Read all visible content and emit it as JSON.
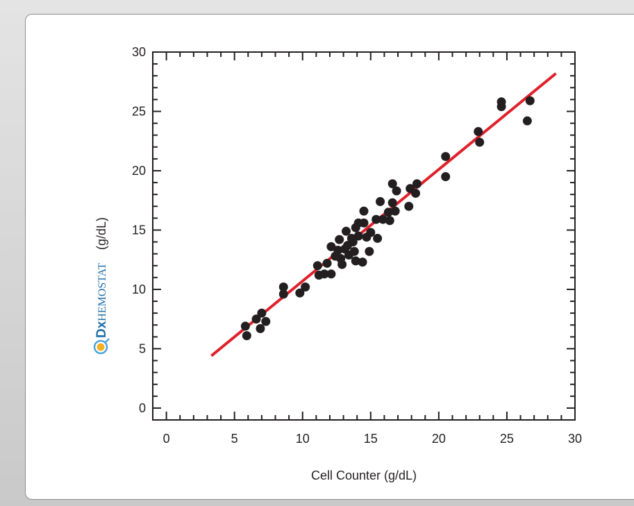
{
  "chart_data": {
    "type": "scatter",
    "xlabel": "Cell Counter (g/dL)",
    "ylabel": "(g/dL)",
    "ylabel_logo": {
      "prefix": "Dx",
      "name": "HemoStat",
      "name_display": "HEMOSTAT"
    },
    "xlim": [
      -1,
      30
    ],
    "ylim": [
      -1,
      30
    ],
    "x_ticks": [
      0,
      5,
      10,
      15,
      20,
      25,
      30
    ],
    "y_ticks": [
      0,
      5,
      10,
      15,
      20,
      25,
      30
    ],
    "grid": false,
    "legend": null,
    "colors": {
      "points": "#231f20",
      "fit_line": "#e0202a",
      "axes": "#231f20",
      "logo": "#1f6ea9"
    },
    "fit_line": {
      "x": [
        3.3,
        28.6
      ],
      "y": [
        4.4,
        28.2
      ]
    },
    "series": [
      {
        "points": [
          [
            5.8,
            6.9
          ],
          [
            5.9,
            6.1
          ],
          [
            6.6,
            7.5
          ],
          [
            6.9,
            6.7
          ],
          [
            7.0,
            8.0
          ],
          [
            7.3,
            7.3
          ],
          [
            8.6,
            10.2
          ],
          [
            8.6,
            9.6
          ],
          [
            9.8,
            9.7
          ],
          [
            10.2,
            10.2
          ],
          [
            11.1,
            12.0
          ],
          [
            11.2,
            11.2
          ],
          [
            11.6,
            11.3
          ],
          [
            11.8,
            12.2
          ],
          [
            12.1,
            11.3
          ],
          [
            12.1,
            13.6
          ],
          [
            12.4,
            12.8
          ],
          [
            12.6,
            13.3
          ],
          [
            12.7,
            14.2
          ],
          [
            12.8,
            12.6
          ],
          [
            12.9,
            12.1
          ],
          [
            13.1,
            13.4
          ],
          [
            13.2,
            14.9
          ],
          [
            13.3,
            13.7
          ],
          [
            13.4,
            12.9
          ],
          [
            13.6,
            14.3
          ],
          [
            13.7,
            14.0
          ],
          [
            13.8,
            13.2
          ],
          [
            13.9,
            12.4
          ],
          [
            13.9,
            15.2
          ],
          [
            14.1,
            15.6
          ],
          [
            14.1,
            14.5
          ],
          [
            14.4,
            12.3
          ],
          [
            14.5,
            16.6
          ],
          [
            14.5,
            15.6
          ],
          [
            14.7,
            14.4
          ],
          [
            14.9,
            13.2
          ],
          [
            15.0,
            14.8
          ],
          [
            15.4,
            15.9
          ],
          [
            15.5,
            14.3
          ],
          [
            15.7,
            17.4
          ],
          [
            15.9,
            15.9
          ],
          [
            16.3,
            16.5
          ],
          [
            16.4,
            15.8
          ],
          [
            16.6,
            18.9
          ],
          [
            16.6,
            17.3
          ],
          [
            16.8,
            16.6
          ],
          [
            16.9,
            18.3
          ],
          [
            17.8,
            17.0
          ],
          [
            17.9,
            18.5
          ],
          [
            18.3,
            18.1
          ],
          [
            18.4,
            18.9
          ],
          [
            20.5,
            21.2
          ],
          [
            20.5,
            19.5
          ],
          [
            22.9,
            23.3
          ],
          [
            23.0,
            22.4
          ],
          [
            24.6,
            25.8
          ],
          [
            24.6,
            25.4
          ],
          [
            26.5,
            24.2
          ],
          [
            26.7,
            25.9
          ]
        ]
      }
    ]
  }
}
